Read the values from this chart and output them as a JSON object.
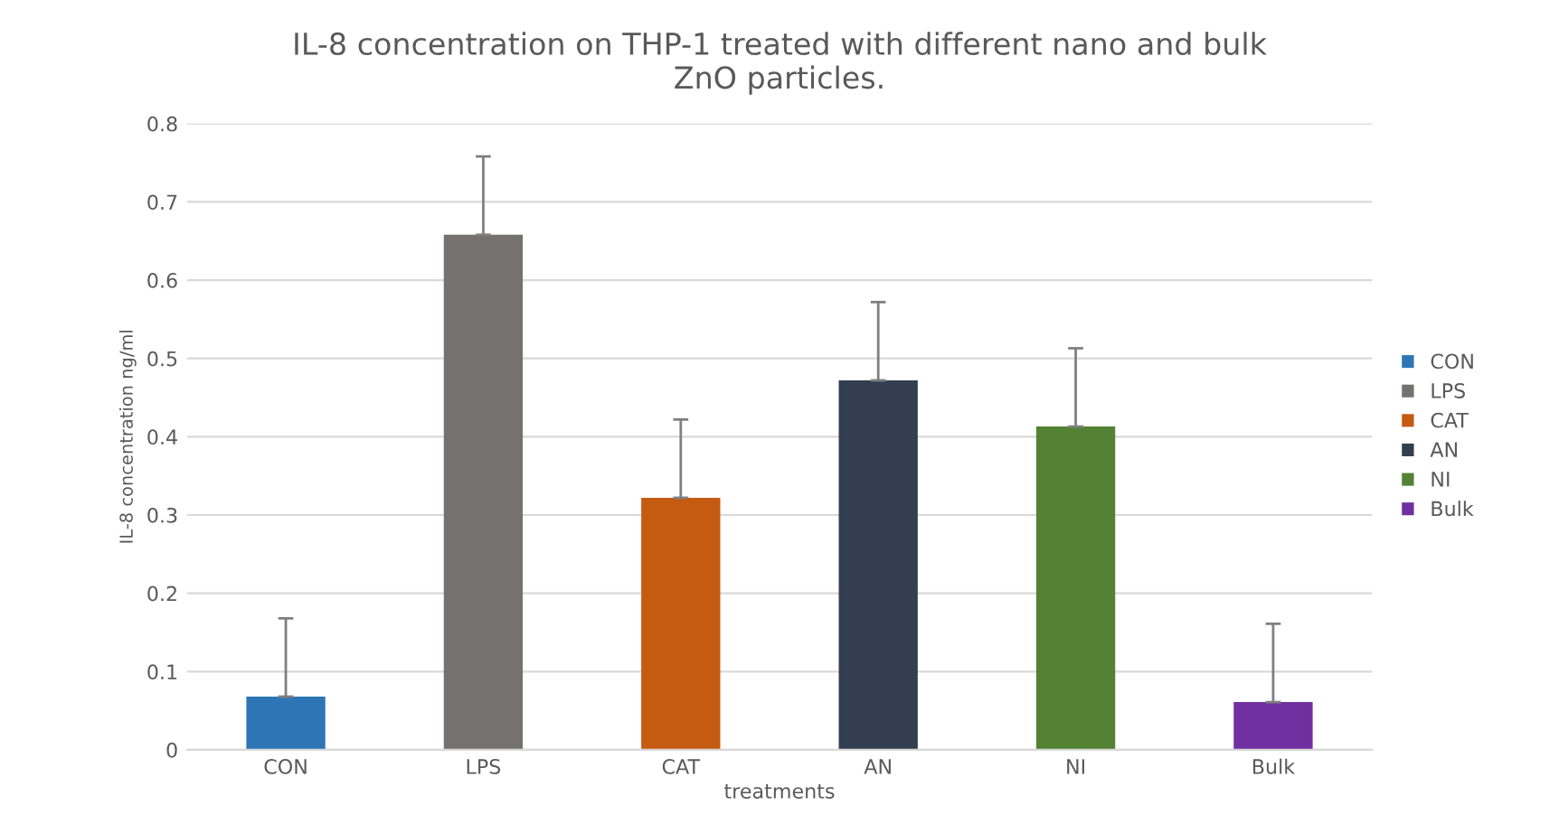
{
  "chart_data": {
    "type": "bar",
    "title": "IL-8 concentration on THP-1 treated with different nano and bulk\nZnO particles.",
    "xlabel": "treatments",
    "ylabel": "IL-8 concentration ng/ml",
    "categories": [
      "CON",
      "LPS",
      "CAT",
      "AN",
      "NI",
      "Bulk"
    ],
    "series": [
      {
        "name": "CON",
        "color": "#2e75b6",
        "values": [
          0.068,
          null,
          null,
          null,
          null,
          null
        ],
        "errors": [
          0.1,
          null,
          null,
          null,
          null,
          null
        ]
      },
      {
        "name": "LPS",
        "color": "#767171",
        "values": [
          null,
          0.658,
          null,
          null,
          null,
          null
        ],
        "errors": [
          null,
          0.1,
          null,
          null,
          null,
          null
        ]
      },
      {
        "name": "CAT",
        "color": "#c55a11",
        "values": [
          null,
          null,
          0.322,
          null,
          null,
          null
        ],
        "errors": [
          null,
          null,
          0.1,
          null,
          null,
          null
        ]
      },
      {
        "name": "AN",
        "color": "#333f50",
        "values": [
          null,
          null,
          null,
          0.472,
          null,
          null
        ],
        "errors": [
          null,
          null,
          null,
          0.1,
          null,
          null
        ]
      },
      {
        "name": "NI",
        "color": "#548235",
        "values": [
          null,
          null,
          null,
          null,
          0.413,
          null
        ],
        "errors": [
          null,
          null,
          null,
          null,
          0.1,
          null
        ]
      },
      {
        "name": "Bulk",
        "color": "#7030a0",
        "values": [
          null,
          null,
          null,
          null,
          null,
          0.061
        ],
        "errors": [
          null,
          null,
          null,
          null,
          null,
          0.1
        ]
      }
    ],
    "ylim": [
      0,
      0.8
    ],
    "yticks": [
      0,
      0.1,
      0.2,
      0.3,
      0.4,
      0.5,
      0.6,
      0.7,
      0.8
    ],
    "grid": "y",
    "legend": "right"
  }
}
